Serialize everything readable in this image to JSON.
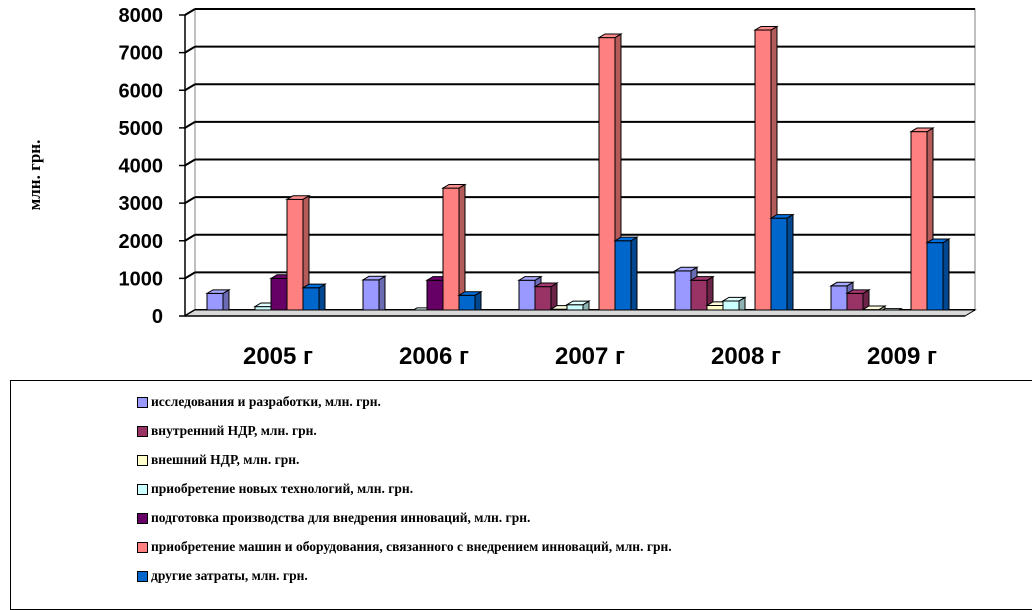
{
  "chart_data": {
    "type": "bar",
    "ylabel": "млн. грн.",
    "ylim": [
      0,
      8000
    ],
    "yticks": [
      "0",
      "1000",
      "2000",
      "3000",
      "4000",
      "5000",
      "6000",
      "7000",
      "8000"
    ],
    "categories": [
      "2005 г",
      "2006 г",
      "2007 г",
      "2008 г",
      "2009 г"
    ],
    "grid": true,
    "legend_position": "bottom",
    "series": [
      {
        "name": "исследования и разработки, млн. грн.",
        "color": "#9999ff",
        "values": [
          600,
          960,
          950,
          1200,
          800
        ]
      },
      {
        "name": "внутренний НДР, млн. грн.",
        "color": "#993366",
        "values": [
          0,
          0,
          780,
          950,
          600
        ]
      },
      {
        "name": "внешний НДР, млн. грн.",
        "color": "#ffffcc",
        "values": [
          0,
          0,
          180,
          280,
          170
        ]
      },
      {
        "name": "приобретение новых технологий, млн. грн.",
        "color": "#ccffff",
        "values": [
          250,
          120,
          300,
          400,
          100
        ]
      },
      {
        "name": "подготовка производства для внедрения инноваций, млн. грн.",
        "color": "#660066",
        "values": [
          1000,
          950,
          0,
          0,
          0
        ]
      },
      {
        "name": "приобретение машин и оборудования, связанного с внедрением инноваций, млн. грн.",
        "color": "#ff8080",
        "values": [
          3100,
          3400,
          7400,
          7600,
          4900
        ]
      },
      {
        "name": "другие затраты, млн. грн.",
        "color": "#0066cc",
        "values": [
          750,
          550,
          2000,
          2600,
          1950
        ]
      }
    ]
  }
}
